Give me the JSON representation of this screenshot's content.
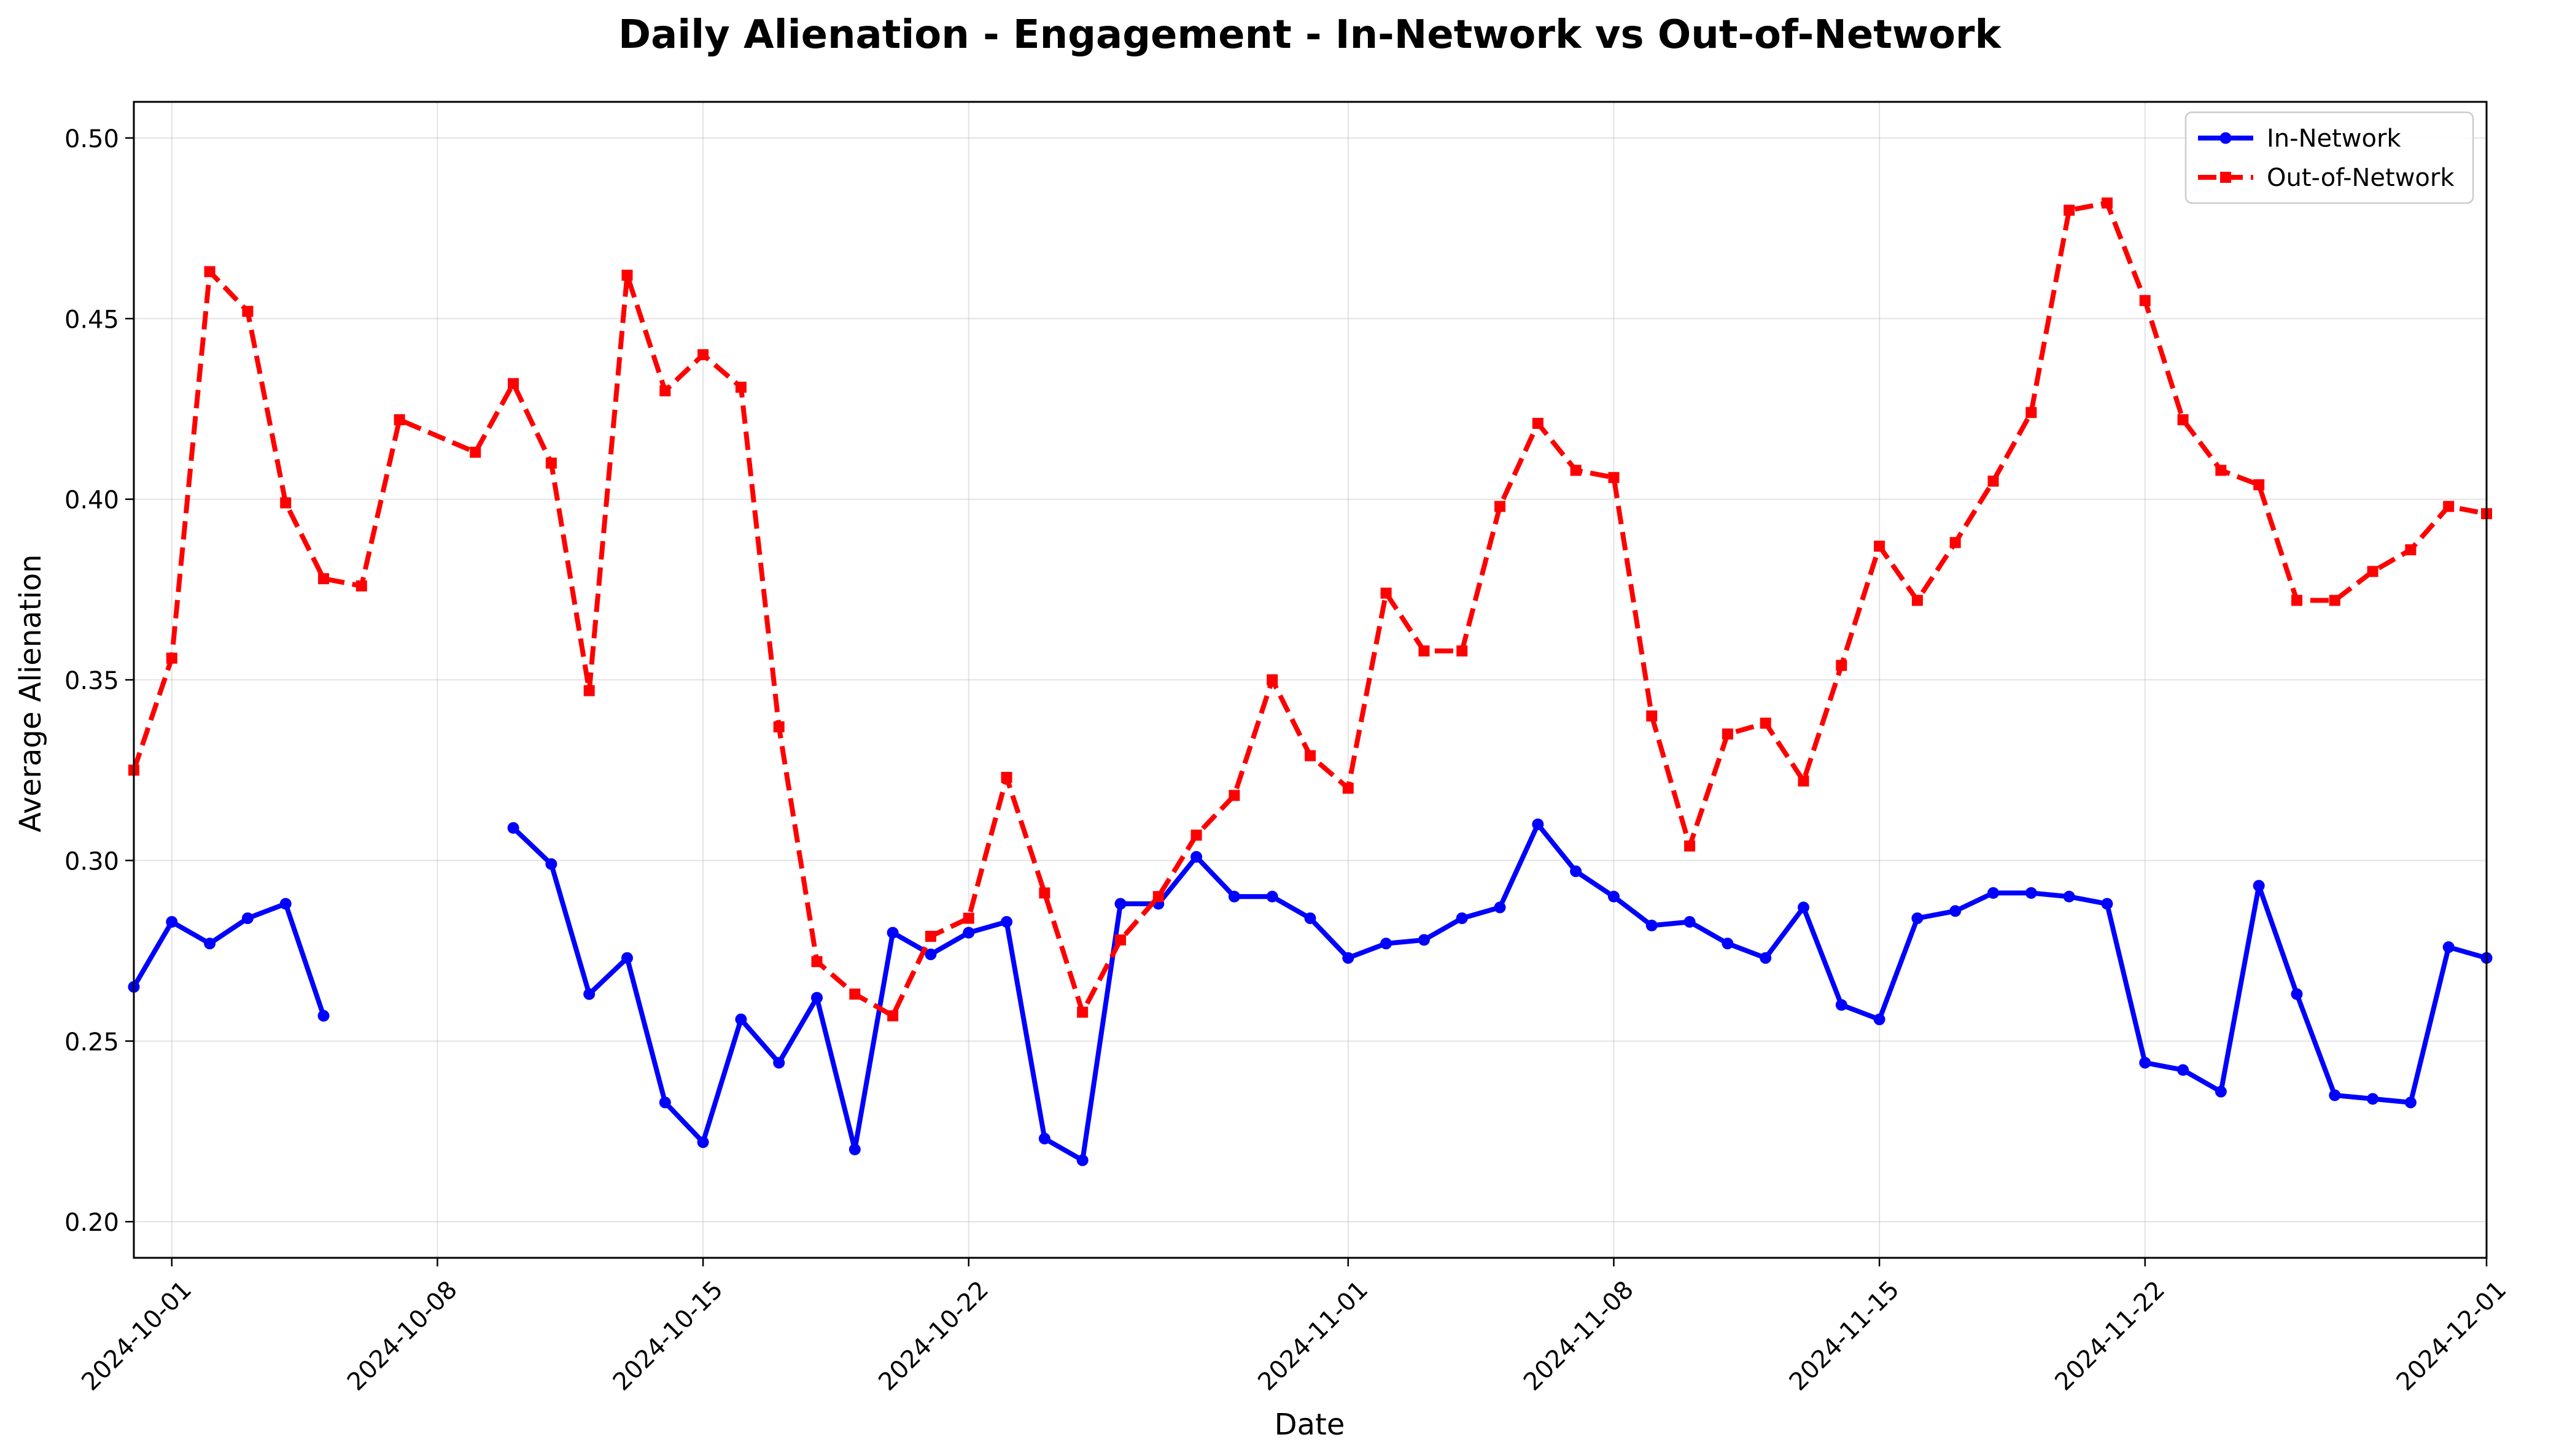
{
  "chart_data": {
    "type": "line",
    "title": "Daily Alienation - Engagement - In-Network vs Out-of-Network",
    "xlabel": "Date",
    "ylabel": "Average Alienation",
    "xlim": [
      "2024-09-30",
      "2024-12-01"
    ],
    "ylim": [
      0.19,
      0.51
    ],
    "x_ticks": [
      "2024-10-01",
      "2024-10-08",
      "2024-10-15",
      "2024-10-22",
      "2024-11-01",
      "2024-11-08",
      "2024-11-15",
      "2024-11-22",
      "2024-12-01"
    ],
    "y_ticks": [
      "0.20",
      "0.25",
      "0.30",
      "0.35",
      "0.40",
      "0.45",
      "0.50"
    ],
    "grid": true,
    "legend_position": "top-right",
    "series": [
      {
        "name": "In-Network",
        "color": "#0000ff",
        "line_style": "solid",
        "marker": "circle",
        "points": [
          [
            "2024-09-30",
            0.265
          ],
          [
            "2024-10-01",
            0.283
          ],
          [
            "2024-10-02",
            0.277
          ],
          [
            "2024-10-03",
            0.284
          ],
          [
            "2024-10-04",
            0.288
          ],
          [
            "2024-10-05",
            0.257
          ],
          [
            "2024-10-06",
            null
          ],
          [
            "2024-10-07",
            null
          ],
          [
            "2024-10-08",
            null
          ],
          [
            "2024-10-09",
            null
          ],
          [
            "2024-10-10",
            0.309
          ],
          [
            "2024-10-11",
            0.299
          ],
          [
            "2024-10-12",
            0.263
          ],
          [
            "2024-10-13",
            0.273
          ],
          [
            "2024-10-14",
            0.233
          ],
          [
            "2024-10-15",
            0.222
          ],
          [
            "2024-10-16",
            0.256
          ],
          [
            "2024-10-17",
            0.244
          ],
          [
            "2024-10-18",
            0.262
          ],
          [
            "2024-10-19",
            0.22
          ],
          [
            "2024-10-20",
            0.28
          ],
          [
            "2024-10-21",
            0.274
          ],
          [
            "2024-10-22",
            0.28
          ],
          [
            "2024-10-23",
            0.283
          ],
          [
            "2024-10-24",
            0.223
          ],
          [
            "2024-10-25",
            0.217
          ],
          [
            "2024-10-26",
            0.288
          ],
          [
            "2024-10-27",
            0.288
          ],
          [
            "2024-10-28",
            0.301
          ],
          [
            "2024-10-29",
            0.29
          ],
          [
            "2024-10-30",
            0.29
          ],
          [
            "2024-10-31",
            0.284
          ],
          [
            "2024-11-01",
            0.273
          ],
          [
            "2024-11-02",
            0.277
          ],
          [
            "2024-11-03",
            0.278
          ],
          [
            "2024-11-04",
            0.284
          ],
          [
            "2024-11-05",
            0.287
          ],
          [
            "2024-11-06",
            0.31
          ],
          [
            "2024-11-07",
            0.297
          ],
          [
            "2024-11-08",
            0.29
          ],
          [
            "2024-11-09",
            0.282
          ],
          [
            "2024-11-10",
            0.283
          ],
          [
            "2024-11-11",
            0.277
          ],
          [
            "2024-11-12",
            0.273
          ],
          [
            "2024-11-13",
            0.287
          ],
          [
            "2024-11-14",
            0.26
          ],
          [
            "2024-11-15",
            0.256
          ],
          [
            "2024-11-16",
            0.284
          ],
          [
            "2024-11-17",
            0.286
          ],
          [
            "2024-11-18",
            0.291
          ],
          [
            "2024-11-19",
            0.291
          ],
          [
            "2024-11-20",
            0.29
          ],
          [
            "2024-11-21",
            0.288
          ],
          [
            "2024-11-22",
            0.244
          ],
          [
            "2024-11-23",
            0.242
          ],
          [
            "2024-11-24",
            0.236
          ],
          [
            "2024-11-25",
            0.293
          ],
          [
            "2024-11-26",
            0.263
          ],
          [
            "2024-11-27",
            0.235
          ],
          [
            "2024-11-28",
            0.234
          ],
          [
            "2024-11-29",
            0.233
          ],
          [
            "2024-11-30",
            0.276
          ],
          [
            "2024-12-01",
            0.273
          ]
        ]
      },
      {
        "name": "Out-of-Network",
        "color": "#ff0000",
        "line_style": "dashed",
        "marker": "square",
        "points": [
          [
            "2024-09-30",
            0.325
          ],
          [
            "2024-10-01",
            0.356
          ],
          [
            "2024-10-02",
            0.463
          ],
          [
            "2024-10-03",
            0.452
          ],
          [
            "2024-10-04",
            0.399
          ],
          [
            "2024-10-05",
            0.378
          ],
          [
            "2024-10-06",
            0.376
          ],
          [
            "2024-10-07",
            0.422
          ],
          [
            "2024-10-09",
            0.413
          ],
          [
            "2024-10-10",
            0.432
          ],
          [
            "2024-10-11",
            0.41
          ],
          [
            "2024-10-12",
            0.347
          ],
          [
            "2024-10-13",
            0.462
          ],
          [
            "2024-10-14",
            0.43
          ],
          [
            "2024-10-15",
            0.44
          ],
          [
            "2024-10-16",
            0.431
          ],
          [
            "2024-10-17",
            0.337
          ],
          [
            "2024-10-18",
            0.272
          ],
          [
            "2024-10-19",
            0.263
          ],
          [
            "2024-10-20",
            0.257
          ],
          [
            "2024-10-21",
            0.279
          ],
          [
            "2024-10-22",
            0.284
          ],
          [
            "2024-10-23",
            0.323
          ],
          [
            "2024-10-24",
            0.291
          ],
          [
            "2024-10-25",
            0.258
          ],
          [
            "2024-10-26",
            0.278
          ],
          [
            "2024-10-27",
            0.29
          ],
          [
            "2024-10-28",
            0.307
          ],
          [
            "2024-10-29",
            0.318
          ],
          [
            "2024-10-30",
            0.35
          ],
          [
            "2024-10-31",
            0.329
          ],
          [
            "2024-11-01",
            0.32
          ],
          [
            "2024-11-02",
            0.374
          ],
          [
            "2024-11-03",
            0.358
          ],
          [
            "2024-11-04",
            0.358
          ],
          [
            "2024-11-05",
            0.398
          ],
          [
            "2024-11-06",
            0.421
          ],
          [
            "2024-11-07",
            0.408
          ],
          [
            "2024-11-08",
            0.406
          ],
          [
            "2024-11-09",
            0.34
          ],
          [
            "2024-11-10",
            0.304
          ],
          [
            "2024-11-11",
            0.335
          ],
          [
            "2024-11-12",
            0.338
          ],
          [
            "2024-11-13",
            0.322
          ],
          [
            "2024-11-14",
            0.354
          ],
          [
            "2024-11-15",
            0.387
          ],
          [
            "2024-11-16",
            0.372
          ],
          [
            "2024-11-17",
            0.388
          ],
          [
            "2024-11-18",
            0.405
          ],
          [
            "2024-11-19",
            0.424
          ],
          [
            "2024-11-20",
            0.48
          ],
          [
            "2024-11-21",
            0.482
          ],
          [
            "2024-11-22",
            0.455
          ],
          [
            "2024-11-23",
            0.422
          ],
          [
            "2024-11-24",
            0.408
          ],
          [
            "2024-11-25",
            0.404
          ],
          [
            "2024-11-26",
            0.372
          ],
          [
            "2024-11-27",
            0.372
          ],
          [
            "2024-11-28",
            0.38
          ],
          [
            "2024-11-29",
            0.386
          ],
          [
            "2024-11-30",
            0.398
          ],
          [
            "2024-12-01",
            0.396
          ]
        ]
      }
    ]
  }
}
